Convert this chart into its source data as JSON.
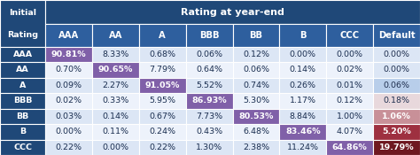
{
  "header_row": [
    "AAA",
    "AA",
    "A",
    "BBB",
    "BB",
    "B",
    "CCC",
    "Default"
  ],
  "row_labels": [
    "AAA",
    "AA",
    "A",
    "BBB",
    "BB",
    "B",
    "CCC"
  ],
  "values": [
    [
      "90.81%",
      "8.33%",
      "0.68%",
      "0.06%",
      "0.12%",
      "0.00%",
      "0.00%",
      "0.00%"
    ],
    [
      "0.70%",
      "90.65%",
      "7.79%",
      "0.64%",
      "0.06%",
      "0.14%",
      "0.02%",
      "0.00%"
    ],
    [
      "0.09%",
      "2.27%",
      "91.05%",
      "5.52%",
      "0.74%",
      "0.26%",
      "0.01%",
      "0.06%"
    ],
    [
      "0.02%",
      "0.33%",
      "5.95%",
      "86.93%",
      "5.30%",
      "1.17%",
      "0.12%",
      "0.18%"
    ],
    [
      "0.03%",
      "0.14%",
      "0.67%",
      "7.73%",
      "80.53%",
      "8.84%",
      "1.00%",
      "1.06%"
    ],
    [
      "0.00%",
      "0.11%",
      "0.24%",
      "0.43%",
      "6.48%",
      "83.46%",
      "4.07%",
      "5.20%"
    ],
    [
      "0.22%",
      "0.00%",
      "0.22%",
      "1.30%",
      "2.38%",
      "11.24%",
      "64.86%",
      "19.79%"
    ]
  ],
  "title": "Rating at year-end",
  "header_bg": "#1f4878",
  "header_text": "#ffffff",
  "row_label_bg": "#1f4878",
  "subheader_bg": "#2e5f9e",
  "cell_bg_light": "#dce6f5",
  "cell_bg_lighter": "#edf2fb",
  "diag_color": "#8060a8",
  "default_highlight": {
    "0": "#dce6f5",
    "1": "#dce6f5",
    "2": "#b8ceea",
    "3": "#e8d8dc",
    "4": "#c89098",
    "5": "#9e3040",
    "6": "#6e1820"
  },
  "default_text": {
    "0": "#1f2f4f",
    "1": "#1f2f4f",
    "2": "#1f2f4f",
    "3": "#1f2f4f",
    "4": "#ffffff",
    "5": "#ffffff",
    "6": "#ffffff"
  },
  "font_size": 6.8,
  "header_font_size": 8.0,
  "subheader_font_size": 7.2
}
